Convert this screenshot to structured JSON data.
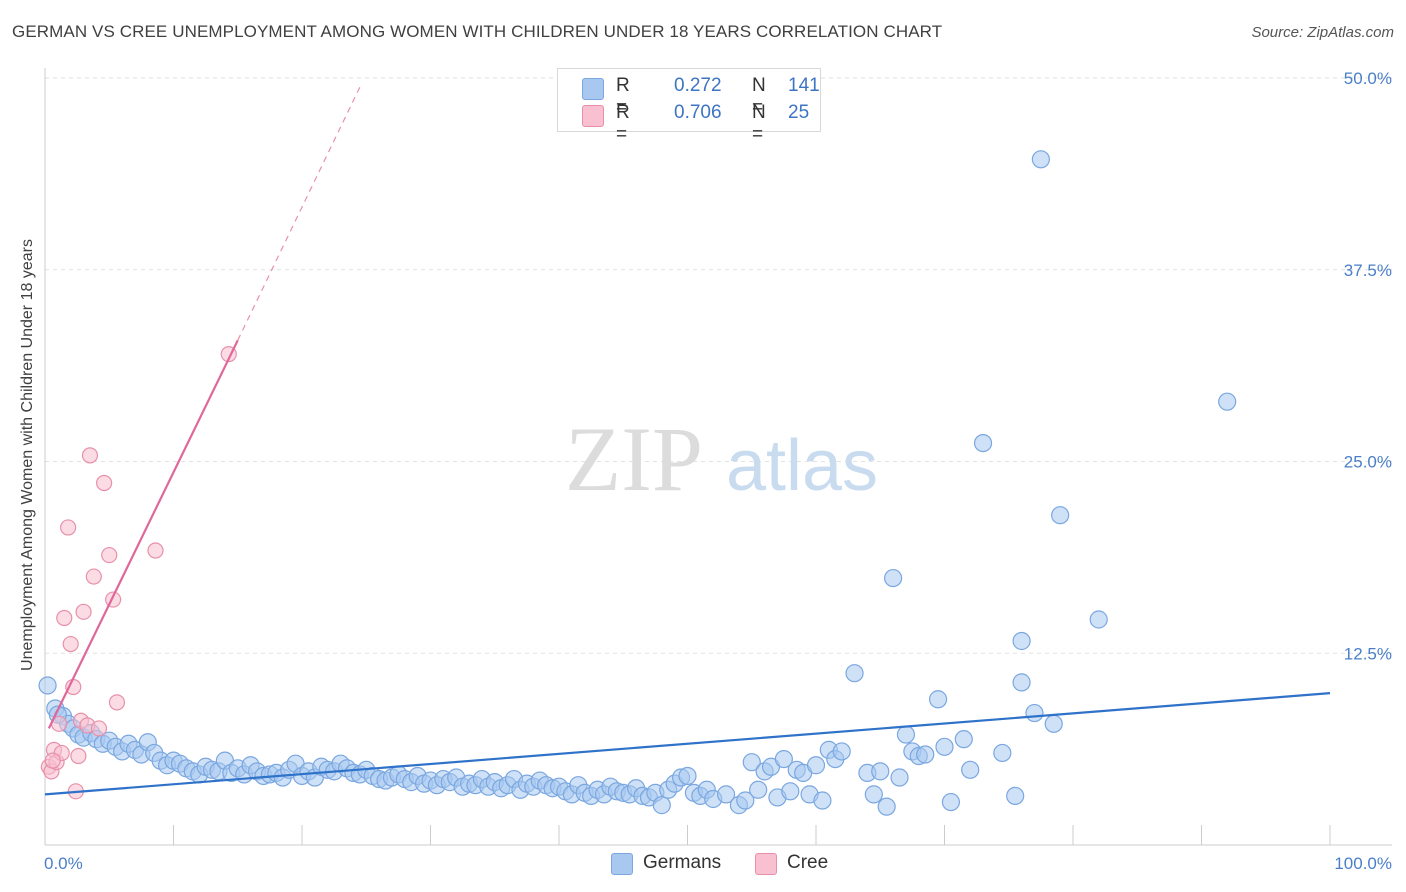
{
  "title": "GERMAN VS CREE UNEMPLOYMENT AMONG WOMEN WITH CHILDREN UNDER 18 YEARS CORRELATION CHART",
  "source": "Source: ZipAtlas.com",
  "watermark": {
    "zip": "ZIP",
    "atlas": "atlas"
  },
  "legend": {
    "rows": [
      {
        "r_label": "R =",
        "r_value": "0.272",
        "n_label": "N =",
        "n_value": "141",
        "color": "#a8c8f0",
        "border": "#7aa7e0"
      },
      {
        "r_label": "R =",
        "r_value": "0.706",
        "n_label": "N =",
        "n_value": "25",
        "color": "#f8c0d0",
        "border": "#e890aa"
      }
    ]
  },
  "bottom_legend": [
    {
      "label": "Germans",
      "color": "#a8c8f0",
      "border": "#7aa7e0"
    },
    {
      "label": "Cree",
      "color": "#f8c0d0",
      "border": "#e890aa"
    }
  ],
  "chart_data": {
    "type": "scatter",
    "title": "GERMAN VS CREE UNEMPLOYMENT AMONG WOMEN WITH CHILDREN UNDER 18 YEARS CORRELATION CHART",
    "xlabel": "",
    "ylabel": "Unemployment Among Women with Children Under 18 years",
    "xlim": [
      0,
      100
    ],
    "ylim": [
      0,
      50
    ],
    "x_tick_labels": {
      "left": "0.0%",
      "right": "100.0%"
    },
    "y_ticks": [
      {
        "value": 12.5,
        "label": "12.5%"
      },
      {
        "value": 25.0,
        "label": "25.0%"
      },
      {
        "value": 37.5,
        "label": "37.5%"
      },
      {
        "value": 50.0,
        "label": "50.0%"
      }
    ],
    "grid": true,
    "series": [
      {
        "name": "Germans",
        "color": "#7aa7e0",
        "fill": "#a8c8f0",
        "trend": {
          "x0": 0,
          "y0": 3.3,
          "x1": 100,
          "y1": 9.9,
          "color": "#2f72c9"
        },
        "points": [
          [
            0.2,
            10.4
          ],
          [
            0.8,
            8.9
          ],
          [
            1.4,
            8.4
          ],
          [
            1.8,
            7.9
          ],
          [
            2.2,
            7.6
          ],
          [
            2.6,
            7.2
          ],
          [
            3.0,
            7.0
          ],
          [
            3.6,
            7.3
          ],
          [
            4.0,
            6.9
          ],
          [
            4.5,
            6.6
          ],
          [
            5.0,
            6.8
          ],
          [
            5.5,
            6.4
          ],
          [
            6.0,
            6.1
          ],
          [
            6.5,
            6.6
          ],
          [
            7.0,
            6.2
          ],
          [
            7.5,
            5.9
          ],
          [
            8.0,
            6.7
          ],
          [
            8.5,
            6.0
          ],
          [
            9.0,
            5.5
          ],
          [
            9.5,
            5.2
          ],
          [
            10.0,
            5.5
          ],
          [
            10.5,
            5.3
          ],
          [
            11.0,
            5.0
          ],
          [
            11.5,
            4.8
          ],
          [
            12.0,
            4.6
          ],
          [
            12.5,
            5.1
          ],
          [
            13.0,
            4.9
          ],
          [
            13.5,
            4.8
          ],
          [
            14.0,
            5.5
          ],
          [
            14.5,
            4.7
          ],
          [
            15.0,
            5.0
          ],
          [
            15.5,
            4.6
          ],
          [
            16.0,
            5.2
          ],
          [
            16.5,
            4.8
          ],
          [
            17.0,
            4.5
          ],
          [
            17.5,
            4.6
          ],
          [
            18.0,
            4.7
          ],
          [
            18.5,
            4.4
          ],
          [
            19.0,
            4.9
          ],
          [
            19.5,
            5.3
          ],
          [
            20.0,
            4.5
          ],
          [
            20.5,
            4.8
          ],
          [
            21.0,
            4.4
          ],
          [
            21.5,
            5.1
          ],
          [
            22.0,
            4.9
          ],
          [
            22.5,
            4.8
          ],
          [
            23.0,
            5.3
          ],
          [
            23.5,
            5.0
          ],
          [
            24.0,
            4.7
          ],
          [
            24.5,
            4.6
          ],
          [
            25.0,
            4.9
          ],
          [
            25.5,
            4.5
          ],
          [
            26.0,
            4.3
          ],
          [
            26.5,
            4.2
          ],
          [
            27.0,
            4.4
          ],
          [
            27.5,
            4.6
          ],
          [
            28.0,
            4.3
          ],
          [
            28.5,
            4.1
          ],
          [
            29.0,
            4.5
          ],
          [
            29.5,
            4.0
          ],
          [
            30.0,
            4.2
          ],
          [
            30.5,
            3.9
          ],
          [
            31.0,
            4.3
          ],
          [
            31.5,
            4.1
          ],
          [
            32.0,
            4.4
          ],
          [
            32.5,
            3.8
          ],
          [
            33.0,
            4.0
          ],
          [
            33.5,
            3.9
          ],
          [
            34.0,
            4.3
          ],
          [
            34.5,
            3.8
          ],
          [
            35.0,
            4.1
          ],
          [
            35.5,
            3.7
          ],
          [
            36.0,
            3.9
          ],
          [
            36.5,
            4.3
          ],
          [
            37.0,
            3.6
          ],
          [
            37.5,
            4.0
          ],
          [
            38.0,
            3.8
          ],
          [
            38.5,
            4.2
          ],
          [
            39.0,
            3.9
          ],
          [
            39.5,
            3.7
          ],
          [
            40.0,
            3.8
          ],
          [
            40.5,
            3.5
          ],
          [
            41.0,
            3.3
          ],
          [
            41.5,
            3.9
          ],
          [
            42.0,
            3.4
          ],
          [
            42.5,
            3.2
          ],
          [
            43.0,
            3.6
          ],
          [
            43.5,
            3.3
          ],
          [
            44.0,
            3.8
          ],
          [
            44.5,
            3.5
          ],
          [
            45.0,
            3.4
          ],
          [
            45.5,
            3.3
          ],
          [
            46.0,
            3.7
          ],
          [
            46.5,
            3.2
          ],
          [
            47.0,
            3.1
          ],
          [
            47.5,
            3.4
          ],
          [
            48.0,
            2.6
          ],
          [
            48.5,
            3.6
          ],
          [
            49.0,
            4.0
          ],
          [
            49.5,
            4.4
          ],
          [
            50.0,
            4.5
          ],
          [
            50.5,
            3.4
          ],
          [
            51.0,
            3.2
          ],
          [
            51.5,
            3.6
          ],
          [
            52.0,
            3.0
          ],
          [
            53.0,
            3.3
          ],
          [
            54.0,
            2.6
          ],
          [
            54.5,
            2.9
          ],
          [
            55.0,
            5.4
          ],
          [
            55.5,
            3.6
          ],
          [
            56.0,
            4.8
          ],
          [
            56.5,
            5.1
          ],
          [
            57.0,
            3.1
          ],
          [
            57.5,
            5.6
          ],
          [
            58.0,
            3.5
          ],
          [
            58.5,
            4.9
          ],
          [
            59.0,
            4.7
          ],
          [
            59.5,
            3.3
          ],
          [
            60.0,
            5.2
          ],
          [
            60.5,
            2.9
          ],
          [
            61.0,
            6.2
          ],
          [
            61.5,
            5.6
          ],
          [
            62.0,
            6.1
          ],
          [
            63.0,
            11.2
          ],
          [
            64.0,
            4.7
          ],
          [
            64.5,
            3.3
          ],
          [
            65.0,
            4.8
          ],
          [
            65.5,
            2.5
          ],
          [
            66.0,
            17.4
          ],
          [
            66.5,
            4.4
          ],
          [
            67.0,
            7.2
          ],
          [
            67.5,
            6.1
          ],
          [
            68.0,
            5.8
          ],
          [
            68.5,
            5.9
          ],
          [
            69.5,
            9.5
          ],
          [
            70.0,
            6.4
          ],
          [
            70.5,
            2.8
          ],
          [
            71.5,
            6.9
          ],
          [
            72.0,
            4.9
          ],
          [
            73.0,
            26.2
          ],
          [
            74.5,
            6.0
          ],
          [
            75.5,
            3.2
          ],
          [
            76.0,
            10.6
          ],
          [
            76.0,
            13.3
          ],
          [
            77.0,
            8.6
          ],
          [
            77.5,
            44.7
          ],
          [
            78.5,
            7.9
          ],
          [
            79.0,
            21.5
          ],
          [
            82.0,
            14.7
          ],
          [
            92.0,
            28.9
          ],
          [
            1.0,
            8.5
          ]
        ]
      },
      {
        "name": "Cree",
        "color": "#e890aa",
        "fill": "#f8c0d0",
        "trend": {
          "x0": 0.3,
          "y0": 7.6,
          "x1": 15.0,
          "y1": 32.9,
          "color": "#e0679a"
        },
        "trend_dashed": {
          "x0": 15.0,
          "y0": 32.9,
          "x1": 24.5,
          "y1": 49.4,
          "color": "#e890aa"
        },
        "points": [
          [
            0.3,
            5.1
          ],
          [
            0.5,
            4.8
          ],
          [
            0.7,
            6.2
          ],
          [
            0.9,
            5.4
          ],
          [
            1.1,
            7.9
          ],
          [
            1.3,
            6.0
          ],
          [
            1.5,
            14.8
          ],
          [
            1.8,
            20.7
          ],
          [
            2.0,
            13.1
          ],
          [
            2.2,
            10.3
          ],
          [
            2.4,
            3.5
          ],
          [
            2.6,
            5.8
          ],
          [
            2.8,
            8.1
          ],
          [
            3.0,
            15.2
          ],
          [
            3.3,
            7.8
          ],
          [
            3.5,
            25.4
          ],
          [
            3.8,
            17.5
          ],
          [
            4.2,
            7.6
          ],
          [
            4.6,
            23.6
          ],
          [
            5.0,
            18.9
          ],
          [
            5.3,
            16.0
          ],
          [
            5.6,
            9.3
          ],
          [
            8.6,
            19.2
          ],
          [
            14.3,
            32.0
          ],
          [
            0.6,
            5.5
          ]
        ]
      }
    ]
  }
}
